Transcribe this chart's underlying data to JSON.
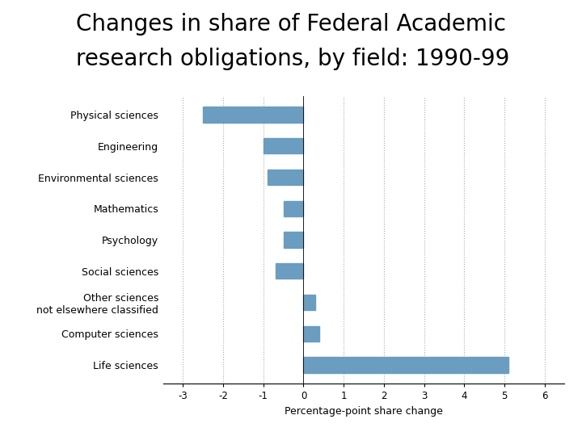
{
  "title_line1": "Changes in share of Federal Academic",
  "title_line2": "research obligations, by field: 1990-99",
  "categories_top_to_bottom": [
    "Physical sciences",
    "Engineering",
    "Environmental sciences",
    "Mathematics",
    "Psychology",
    "Social sciences",
    "Other sciences\nnot elsewhere classified",
    "Computer sciences",
    "Life sciences"
  ],
  "values_top_to_bottom": [
    -2.5,
    -1.0,
    -0.9,
    -0.5,
    -0.5,
    -0.7,
    0.3,
    0.4,
    5.1
  ],
  "bar_color": "#6a9dbf",
  "xlabel": "Percentage-point share change",
  "xlim": [
    -3.5,
    6.5
  ],
  "xticks": [
    -3,
    -2,
    -1,
    0,
    1,
    2,
    3,
    4,
    5,
    6
  ],
  "grid_color": "#aaaaaa",
  "title_fontsize": 20,
  "label_fontsize": 9,
  "tick_fontsize": 8.5,
  "xlabel_fontsize": 9,
  "background_color": "#ffffff",
  "bar_height": 0.5
}
